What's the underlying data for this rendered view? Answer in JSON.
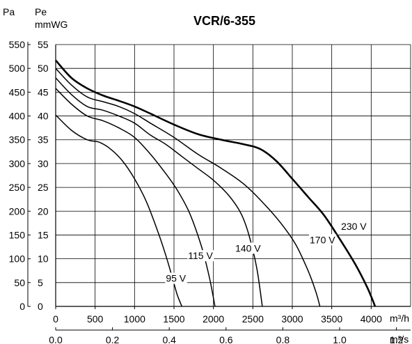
{
  "chart_data": {
    "type": "line",
    "title": "VCR/6-355",
    "y_left_unit": "Pa",
    "y_right_unit_line1": "Pe",
    "y_right_unit_line2": "mmWG",
    "x_top_unit": "m³/h",
    "x_bottom_unit": "m³/s",
    "xlim": [
      0,
      4500
    ],
    "ylim_pa": [
      0,
      550
    ],
    "ylim_mmwg": [
      0,
      55
    ],
    "x_ticks_m3h": [
      "0",
      "500",
      "1000",
      "1500",
      "2000",
      "2500",
      "3000",
      "3500",
      "4000"
    ],
    "x_ticks_m3s": [
      "0.0",
      "0.2",
      "0.4",
      "0.6",
      "0.8",
      "1.0",
      "1.2"
    ],
    "y_ticks_pa": [
      "0",
      "50",
      "100",
      "150",
      "200",
      "250",
      "300",
      "350",
      "400",
      "450",
      "500",
      "550"
    ],
    "y_ticks_mmwg": [
      "0",
      "5",
      "10",
      "15",
      "20",
      "25",
      "30",
      "35",
      "40",
      "45",
      "50",
      "55"
    ],
    "grid": true,
    "series": [
      {
        "name": "95 V",
        "x": [
          0,
          200,
          400,
          550,
          700,
          850,
          1000,
          1150,
          1300,
          1400,
          1480,
          1540,
          1600
        ],
        "y": [
          402,
          370,
          350,
          345,
          330,
          305,
          268,
          220,
          155,
          105,
          60,
          25,
          0
        ]
      },
      {
        "name": "115 V",
        "x": [
          0,
          200,
          400,
          600,
          800,
          1000,
          1200,
          1400,
          1550,
          1700,
          1850,
          1950,
          2020
        ],
        "y": [
          458,
          425,
          400,
          390,
          375,
          355,
          320,
          278,
          242,
          195,
          125,
          60,
          0
        ]
      },
      {
        "name": "140 V",
        "x": [
          0,
          200,
          400,
          600,
          800,
          1000,
          1200,
          1400,
          1600,
          1800,
          2000,
          2200,
          2350,
          2450,
          2550,
          2620
        ],
        "y": [
          480,
          445,
          420,
          412,
          400,
          385,
          360,
          340,
          315,
          290,
          265,
          232,
          195,
          150,
          80,
          0
        ]
      },
      {
        "name": "170 V",
        "x": [
          0,
          200,
          400,
          600,
          800,
          1000,
          1200,
          1500,
          1800,
          2100,
          2400,
          2700,
          2900,
          3050,
          3200,
          3300,
          3350
        ],
        "y": [
          500,
          465,
          440,
          430,
          420,
          405,
          385,
          355,
          320,
          290,
          255,
          205,
          165,
          128,
          75,
          30,
          0
        ]
      },
      {
        "name": "230 V",
        "x": [
          0,
          200,
          400,
          600,
          800,
          1000,
          1200,
          1500,
          1800,
          2100,
          2400,
          2600,
          2800,
          3000,
          3200,
          3400,
          3600,
          3800,
          3950,
          4050
        ],
        "y": [
          517,
          480,
          458,
          443,
          432,
          420,
          405,
          382,
          362,
          350,
          340,
          330,
          305,
          268,
          230,
          192,
          142,
          88,
          40,
          0
        ]
      }
    ],
    "annotations": [
      {
        "text": "95 V",
        "series": 0
      },
      {
        "text": "115 V",
        "series": 1
      },
      {
        "text": "140 V",
        "series": 2
      },
      {
        "text": "170 V",
        "series": 3
      },
      {
        "text": "230 V",
        "series": 4
      }
    ]
  }
}
